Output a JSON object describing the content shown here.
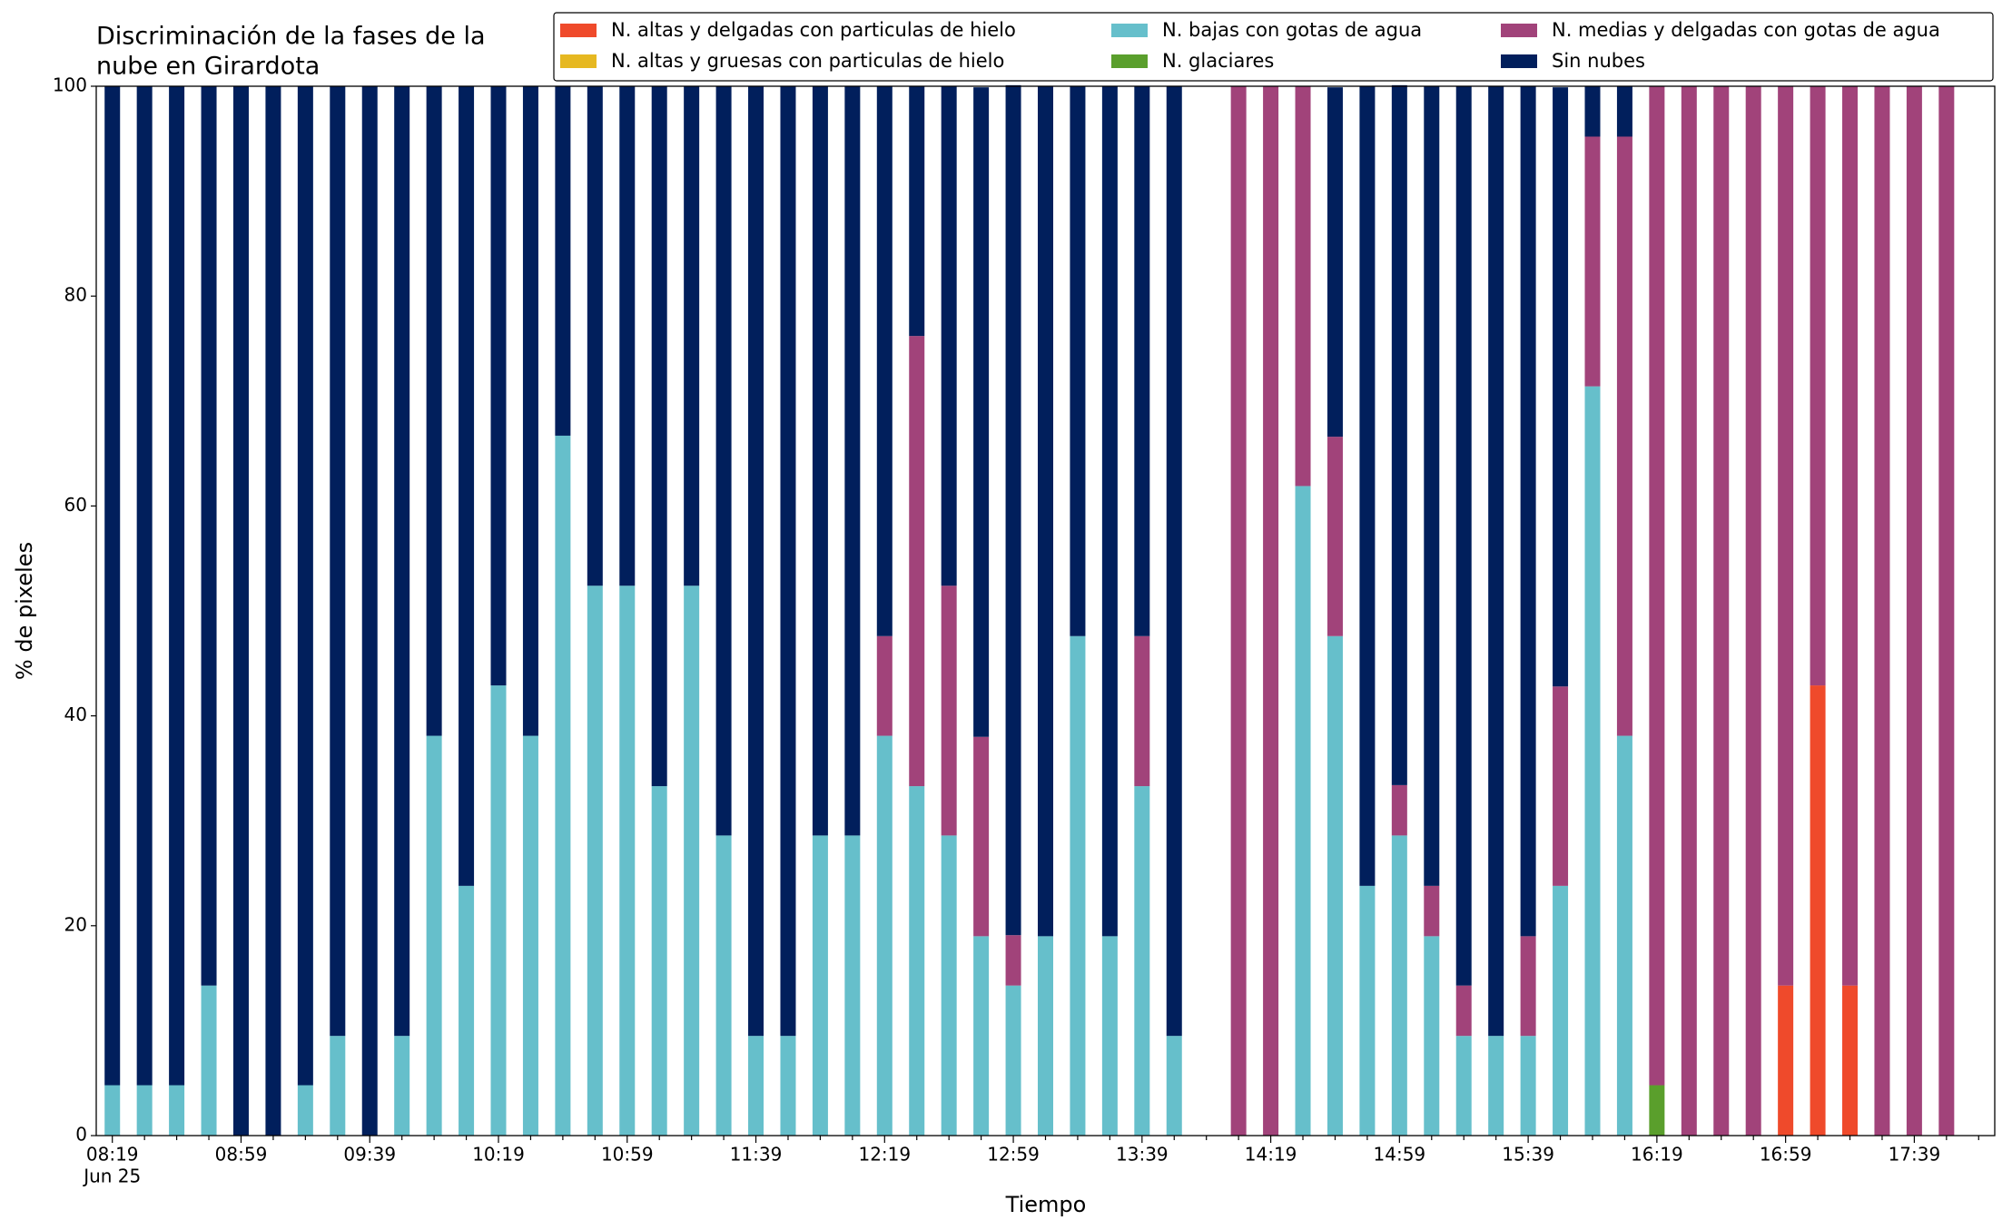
{
  "chart_data": {
    "type": "stacked_bar",
    "title": [
      "Discriminación de la fases de la",
      "nube en Girardota"
    ],
    "xlabel": "Tiempo",
    "ylabel": "% de pixeles",
    "x_date_label": "Jun 25",
    "categories": [
      "08:19",
      null,
      null,
      null,
      "08:59",
      null,
      null,
      null,
      "09:39",
      null,
      null,
      null,
      "10:19",
      null,
      null,
      null,
      "10:59",
      null,
      null,
      null,
      "11:39",
      null,
      null,
      null,
      "12:19",
      null,
      null,
      null,
      "12:59",
      null,
      null,
      null,
      "13:39",
      null,
      null,
      null,
      "14:19",
      null,
      null,
      null,
      "14:59",
      null,
      null,
      null,
      "15:39",
      null,
      null,
      null,
      "16:19",
      null,
      null,
      null,
      "16:59",
      null,
      null,
      null,
      "17:39",
      null
    ],
    "ylim": [
      0,
      100
    ],
    "yticks": [
      0,
      20,
      40,
      60,
      80,
      100
    ],
    "series": [
      {
        "name": "N. altas y delgadas con particulas de hielo",
        "color": "#ef4a2b",
        "values": [
          0,
          0,
          0,
          0,
          0,
          0,
          0,
          0,
          0,
          0,
          0,
          0,
          0,
          0,
          0,
          0,
          0,
          0,
          0,
          0,
          0,
          0,
          0,
          0,
          0,
          0,
          0,
          0,
          0,
          0,
          0,
          0,
          0,
          0,
          null,
          0,
          0,
          0,
          0,
          0,
          0,
          0,
          0,
          0,
          0,
          0,
          0,
          0,
          0,
          0,
          0,
          0,
          14.3,
          42.9,
          14.3,
          0,
          0,
          0
        ]
      },
      {
        "name": "N. altas y gruesas con particulas de hielo",
        "color": "#e6b821",
        "values": [
          0,
          0,
          0,
          0,
          0,
          0,
          0,
          0,
          0,
          0,
          0,
          0,
          0,
          0,
          0,
          0,
          0,
          0,
          0,
          0,
          0,
          0,
          0,
          0,
          0,
          0,
          0,
          0,
          0,
          0,
          0,
          0,
          0,
          0,
          null,
          0,
          0,
          0,
          0,
          0,
          0,
          0,
          0,
          0,
          0,
          0,
          0,
          0,
          0,
          0,
          0,
          0,
          0,
          0,
          0,
          0,
          0,
          0
        ]
      },
      {
        "name": "N. bajas con gotas de agua",
        "color": "#66bfcb",
        "values": [
          4.8,
          4.8,
          4.8,
          14.3,
          0,
          0,
          4.8,
          9.5,
          0,
          9.5,
          38.1,
          23.8,
          42.9,
          38.1,
          66.7,
          52.4,
          52.4,
          33.3,
          52.4,
          28.6,
          9.5,
          9.5,
          28.6,
          28.6,
          38.1,
          33.3,
          28.6,
          19,
          14.3,
          19,
          47.6,
          19,
          33.3,
          9.5,
          null,
          0,
          0,
          61.9,
          47.6,
          23.8,
          28.6,
          19,
          9.5,
          9.5,
          9.5,
          23.8,
          71.4,
          38.1,
          0,
          0,
          0,
          0,
          0,
          0,
          0,
          0,
          0,
          0
        ]
      },
      {
        "name": "N. glaciares",
        "color": "#5a9f2c",
        "values": [
          0,
          0,
          0,
          0,
          0,
          0,
          0,
          0,
          0,
          0,
          0,
          0,
          0,
          0,
          0,
          0,
          0,
          0,
          0,
          0,
          0,
          0,
          0,
          0,
          0,
          0,
          0,
          0,
          0,
          0,
          0,
          0,
          0,
          0,
          null,
          0,
          0,
          0,
          0,
          0,
          0,
          0,
          0,
          0,
          0,
          0,
          0,
          0,
          4.8,
          0,
          0,
          0,
          0,
          0,
          0,
          0,
          0,
          0
        ]
      },
      {
        "name": "N. medias y delgadas con gotas de agua",
        "color": "#a1437a",
        "values": [
          0,
          0,
          0,
          0,
          0,
          0,
          0,
          0,
          0,
          0,
          0,
          0,
          0,
          0,
          0,
          0,
          0,
          0,
          0,
          0,
          0,
          0,
          0,
          0,
          9.5,
          42.9,
          23.8,
          19,
          4.8,
          0,
          0,
          0,
          14.3,
          0,
          null,
          100,
          100,
          38.1,
          19,
          0,
          4.8,
          4.8,
          4.8,
          0,
          9.5,
          19,
          23.8,
          57.1,
          95.2,
          100,
          100,
          100,
          85.7,
          57.1,
          85.7,
          100,
          100,
          100
        ]
      },
      {
        "name": "Sin nubes",
        "color": "#011f5c",
        "values": [
          95.2,
          95.2,
          95.2,
          85.7,
          100,
          100,
          95.2,
          90.5,
          100,
          90.5,
          61.9,
          76.2,
          57.1,
          61.9,
          33.3,
          47.6,
          47.6,
          66.7,
          47.6,
          71.4,
          90.5,
          90.5,
          71.4,
          71.4,
          52.4,
          23.8,
          47.6,
          61.9,
          81,
          81,
          52.4,
          81,
          52.4,
          90.5,
          null,
          0,
          0,
          0,
          33.3,
          76.2,
          66.7,
          76.2,
          85.7,
          90.5,
          81,
          57.1,
          4.8,
          4.8,
          0,
          0,
          0,
          0,
          0,
          0,
          0,
          0,
          0,
          0
        ]
      }
    ]
  }
}
